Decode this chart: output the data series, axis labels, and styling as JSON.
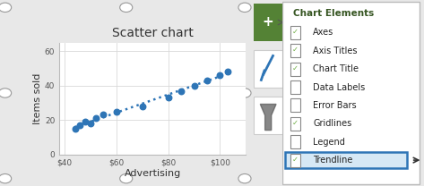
{
  "title": "Scatter chart",
  "xlabel": "Advertising",
  "ylabel": "Items sold",
  "scatter_x": [
    44,
    46,
    48,
    50,
    52,
    55,
    60,
    70,
    80,
    85,
    90,
    95,
    100,
    103
  ],
  "scatter_y": [
    15,
    17,
    19,
    18,
    21,
    23,
    25,
    28,
    33,
    37,
    40,
    43,
    46,
    48
  ],
  "xtick_labels": [
    "$40",
    "$60",
    "$80",
    "$100"
  ],
  "xtick_positions": [
    40,
    60,
    80,
    100
  ],
  "ytick_labels": [
    "0",
    "20",
    "40",
    "60"
  ],
  "ytick_positions": [
    0,
    20,
    40,
    60
  ],
  "xlim": [
    38,
    110
  ],
  "ylim": [
    0,
    65
  ],
  "scatter_color": "#2E75B6",
  "trendline_color": "#2E75B6",
  "outer_bg": "#E8E8E8",
  "chart_area_bg": "#F2F2F2",
  "plot_bg": "#FFFFFF",
  "panel_bg": "#FFFFFF",
  "grid_color": "#D9D9D9",
  "chart_elements": [
    "Axes",
    "Axis Titles",
    "Chart Title",
    "Data Labels",
    "Error Bars",
    "Gridlines",
    "Legend",
    "Trendline"
  ],
  "checked_elements": [
    true,
    true,
    true,
    false,
    false,
    true,
    false,
    true
  ],
  "elements_title": "Chart Elements",
  "elements_title_color": "#375623",
  "checkbox_check_color": "#70AD47",
  "button_color": "#548235",
  "trendline_highlight_edge": "#2E75B6",
  "trendline_highlight_fill": "#D6E8F5"
}
